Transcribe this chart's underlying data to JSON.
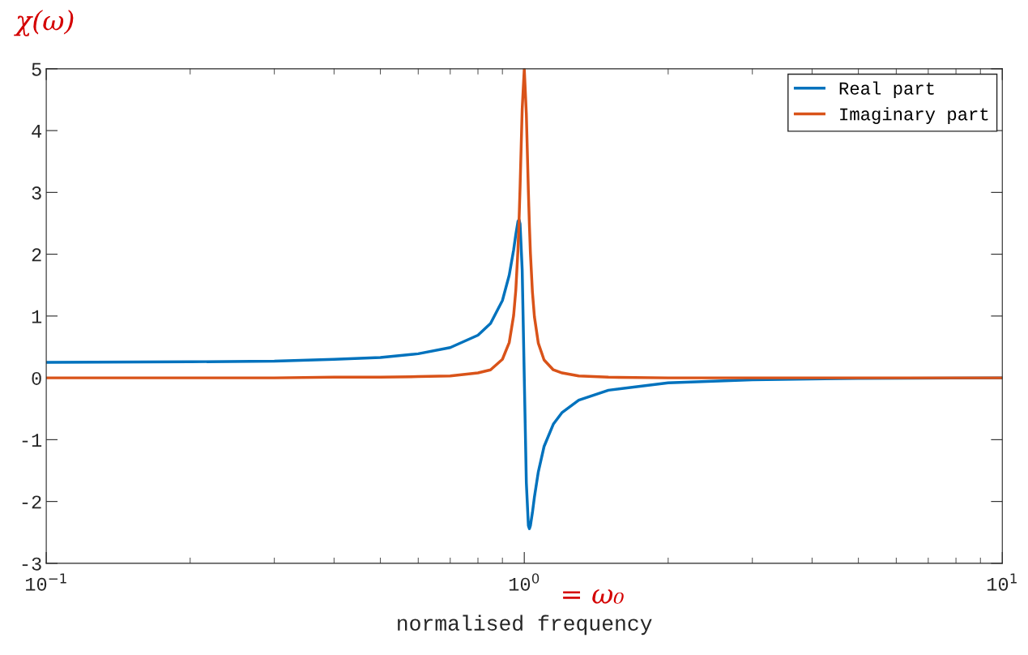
{
  "chart_data": {
    "type": "line",
    "xlabel": "normalised frequency",
    "annotations": [
      "χ(ω)",
      "= ω₀"
    ],
    "x": [
      0.1,
      0.2,
      0.3,
      0.4,
      0.5,
      0.6,
      0.7,
      0.8,
      0.85,
      0.9,
      0.93,
      0.95,
      0.96,
      0.97,
      0.975,
      0.98,
      0.99,
      1.0,
      1.01,
      1.02,
      1.025,
      1.03,
      1.04,
      1.05,
      1.07,
      1.1,
      1.15,
      1.2,
      1.3,
      1.5,
      2,
      3,
      5,
      10
    ],
    "series": [
      {
        "name": "Real part",
        "color": "#0072bd",
        "values": [
          0.25,
          0.26,
          0.27,
          0.3,
          0.33,
          0.39,
          0.49,
          0.69,
          0.88,
          1.25,
          1.66,
          2.07,
          2.32,
          2.53,
          2.56,
          2.49,
          1.75,
          0,
          -1.7,
          -2.39,
          -2.44,
          -2.39,
          -2.18,
          -1.93,
          -1.52,
          -1.11,
          -0.75,
          -0.56,
          -0.36,
          -0.2,
          -0.08,
          -0.03,
          -0.01,
          0
        ]
      },
      {
        "name": "Imaginary part",
        "color": "#d95319",
        "values": [
          0,
          0,
          0,
          0.01,
          0.01,
          0.02,
          0.03,
          0.08,
          0.13,
          0.3,
          0.57,
          1.01,
          1.42,
          2.07,
          2.53,
          3.09,
          4.35,
          5,
          4.27,
          3.01,
          2.47,
          2.02,
          1.39,
          0.99,
          0.56,
          0.29,
          0.13,
          0.08,
          0.03,
          0.01,
          0,
          0,
          0,
          0
        ]
      }
    ],
    "log": "x",
    "xlim": [
      0.1,
      10
    ],
    "ylim": [
      -3,
      5
    ],
    "xticks": [
      {
        "value": 0.1,
        "label": "10$^{−1}$"
      },
      {
        "value": 1,
        "label": "10$^{0}$"
      },
      {
        "value": 10,
        "label": "10$^{1}$"
      }
    ],
    "yticks": [
      -3,
      -2,
      -1,
      0,
      1,
      2,
      3,
      4,
      5
    ],
    "grid": false,
    "legend": "top right",
    "line_style": "solid",
    "marker": "none"
  }
}
